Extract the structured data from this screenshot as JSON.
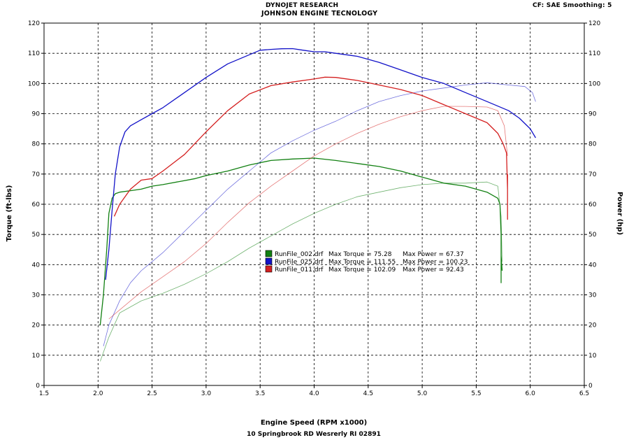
{
  "header": {
    "company": "DYNOJET RESEARCH",
    "shop": "JOHNSON ENGINE TECNOLOGY",
    "settings": "CF: SAE  Smoothing: 5"
  },
  "footer": {
    "address": "10 Springbrook RD Wesrerly RI 02891"
  },
  "chart_data": {
    "type": "line",
    "xlabel": "Engine Speed (RPM x1000)",
    "ylabel": "Torque (ft-lbs)",
    "y2label": "Power (hp)",
    "xlim": [
      1.5,
      6.5
    ],
    "ylim": [
      0,
      120
    ],
    "y2lim": [
      0,
      120
    ],
    "x_ticks": [
      "1.5",
      "2.0",
      "2.5",
      "3.0",
      "3.5",
      "4.0",
      "4.5",
      "5.0",
      "5.5",
      "6.0",
      "6.5"
    ],
    "y_ticks": [
      "0",
      "10",
      "20",
      "30",
      "40",
      "50",
      "60",
      "70",
      "80",
      "90",
      "100",
      "110",
      "120"
    ],
    "grid": true,
    "legend_position": "center",
    "legend": [
      {
        "name": "RunFile_002.drf",
        "torque_label": "Max Torque = 75.28",
        "power_label": "Max Power = 67.37",
        "color": "#128012"
      },
      {
        "name": "RunFile_025.drf",
        "torque_label": "Max Torque = 111.55",
        "power_label": "Max Power = 100.23",
        "color": "#1212c8"
      },
      {
        "name": "RunFile_011.drf",
        "torque_label": "Max Torque = 102.09",
        "power_label": "Max Power = 92.43",
        "color": "#d42020"
      }
    ],
    "series": [
      {
        "name": "RunFile_002.drf",
        "measure": "torque",
        "color": "#128012",
        "x": [
          2.02,
          2.05,
          2.08,
          2.1,
          2.13,
          2.16,
          2.2,
          2.3,
          2.4,
          2.5,
          2.6,
          2.75,
          2.9,
          3.0,
          3.2,
          3.4,
          3.6,
          3.8,
          4.0,
          4.2,
          4.4,
          4.6,
          4.8,
          5.0,
          5.2,
          5.4,
          5.6,
          5.7,
          5.72,
          5.73,
          5.73,
          5.73,
          5.74
        ],
        "y": [
          20,
          30,
          45,
          57,
          62,
          63.5,
          64,
          64.5,
          65,
          66,
          66.5,
          67.5,
          68.5,
          69.5,
          71,
          73,
          74.5,
          75,
          75.28,
          74.5,
          73.5,
          72.5,
          71,
          69,
          67,
          66,
          64,
          62,
          60,
          50,
          34,
          43,
          38
        ]
      },
      {
        "name": "RunFile_002.drf",
        "measure": "power",
        "color": "#128012",
        "x": [
          2.02,
          2.1,
          2.2,
          2.4,
          2.6,
          2.8,
          3.0,
          3.2,
          3.4,
          3.6,
          3.8,
          4.0,
          4.2,
          4.4,
          4.6,
          4.8,
          5.0,
          5.2,
          5.4,
          5.6,
          5.7,
          5.73,
          5.74
        ],
        "y": [
          8,
          16,
          24,
          28,
          30.5,
          33.5,
          37,
          41,
          45.5,
          49.5,
          53.5,
          57,
          60,
          62.5,
          64,
          65.5,
          66.5,
          67,
          67,
          67.37,
          66,
          56,
          41
        ]
      },
      {
        "name": "RunFile_025.drf",
        "measure": "torque",
        "color": "#1212c8",
        "x": [
          2.07,
          2.1,
          2.13,
          2.16,
          2.2,
          2.25,
          2.3,
          2.4,
          2.5,
          2.6,
          2.8,
          3.0,
          3.2,
          3.4,
          3.5,
          3.6,
          3.7,
          3.8,
          3.9,
          4.0,
          4.1,
          4.2,
          4.4,
          4.6,
          4.8,
          5.0,
          5.2,
          5.4,
          5.6,
          5.8,
          5.9,
          6.0,
          6.05
        ],
        "y": [
          35,
          45,
          58,
          70,
          79,
          84,
          86,
          88,
          90,
          92,
          97,
          102,
          106.5,
          109.5,
          111,
          111.3,
          111.5,
          111.55,
          111,
          110.5,
          110.5,
          110,
          109,
          107,
          104.5,
          102,
          100,
          97,
          94,
          91,
          88.5,
          85,
          82
        ]
      },
      {
        "name": "RunFile_025.drf",
        "measure": "power",
        "color": "#1212c8",
        "x": [
          2.05,
          2.1,
          2.2,
          2.3,
          2.4,
          2.6,
          2.8,
          3.0,
          3.2,
          3.4,
          3.6,
          3.8,
          4.0,
          4.2,
          4.4,
          4.6,
          4.8,
          5.0,
          5.2,
          5.4,
          5.6,
          5.8,
          5.95,
          6.02,
          6.05
        ],
        "y": [
          13,
          20,
          28,
          34,
          38,
          44,
          51,
          58,
          65,
          71,
          77,
          81,
          84.5,
          87.5,
          91,
          94,
          96,
          97.5,
          98.5,
          99.5,
          100.23,
          99.5,
          99,
          97,
          94
        ]
      },
      {
        "name": "RunFile_011.drf",
        "measure": "torque",
        "color": "#d42020",
        "x": [
          2.15,
          2.2,
          2.3,
          2.4,
          2.5,
          2.6,
          2.8,
          3.0,
          3.2,
          3.4,
          3.6,
          3.8,
          4.0,
          4.1,
          4.2,
          4.4,
          4.6,
          4.8,
          5.0,
          5.2,
          5.4,
          5.6,
          5.7,
          5.75,
          5.78,
          5.79,
          5.79,
          5.79
        ],
        "y": [
          56,
          60,
          65,
          68,
          68.5,
          71,
          76.5,
          84,
          91,
          96.5,
          99.3,
          100.5,
          101.5,
          102.09,
          102,
          101,
          99.5,
          98,
          96,
          93,
          90,
          87,
          83.5,
          80,
          77,
          65,
          55,
          70
        ]
      },
      {
        "name": "RunFile_011.drf",
        "measure": "power",
        "color": "#d42020",
        "x": [
          2.1,
          2.2,
          2.3,
          2.4,
          2.6,
          2.8,
          3.0,
          3.2,
          3.4,
          3.6,
          3.8,
          4.0,
          4.2,
          4.4,
          4.6,
          4.8,
          5.0,
          5.2,
          5.4,
          5.6,
          5.7,
          5.76,
          5.79
        ],
        "y": [
          22,
          25,
          28,
          31,
          36,
          41,
          47,
          54,
          60.5,
          66,
          71,
          76,
          80,
          83.5,
          86.5,
          89,
          91,
          92.43,
          92.4,
          92.2,
          91,
          86,
          76
        ]
      }
    ]
  }
}
